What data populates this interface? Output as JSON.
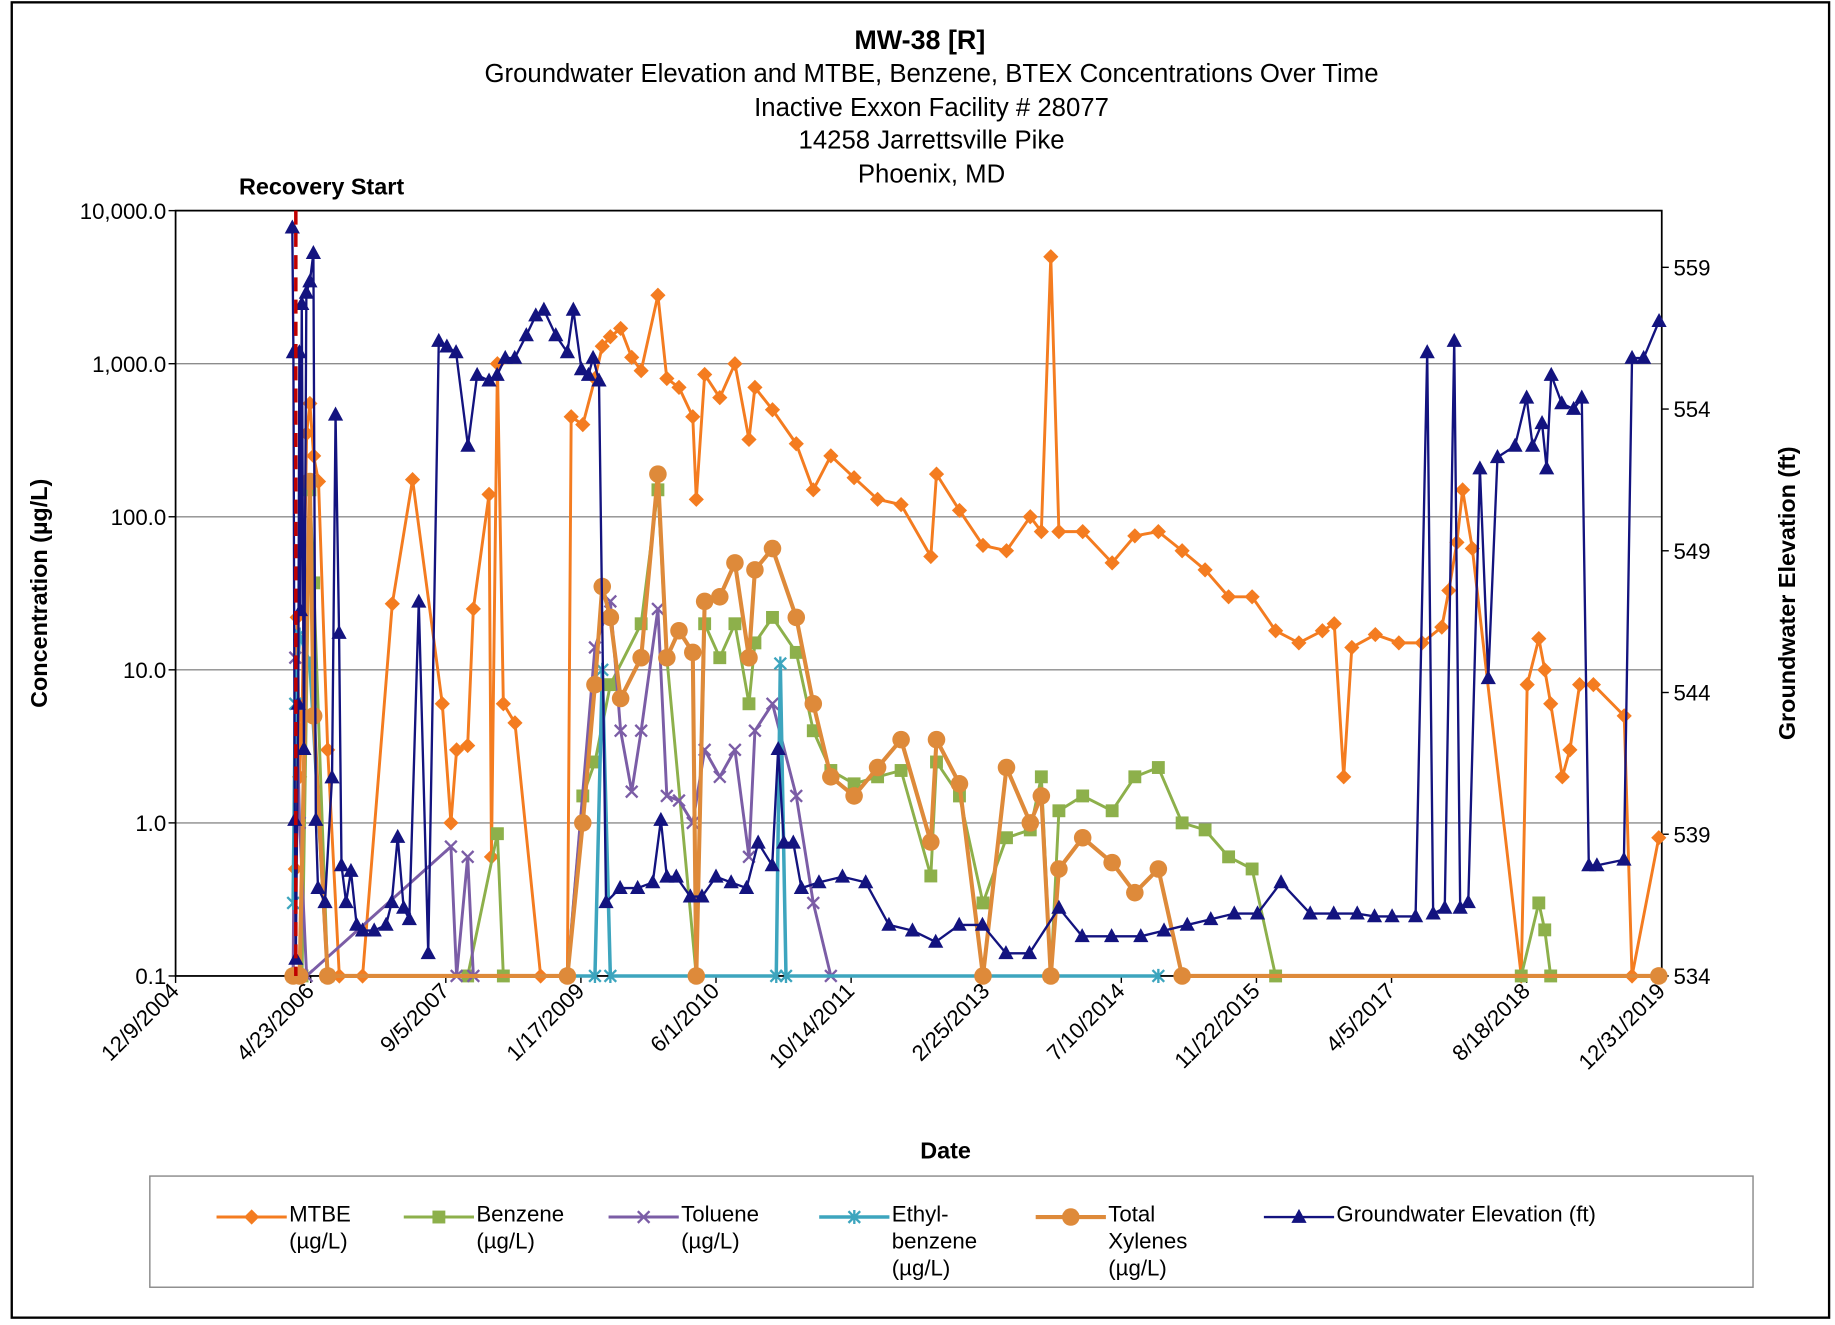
{
  "chart_data": {
    "type": "line",
    "title": "MW-38 [R]",
    "subtitle": [
      "Groundwater Elevation and MTBE, Benzene, BTEX Concentrations Over Time",
      "Inactive Exxon Facility # 28077",
      "14258 Jarrettsville Pike",
      "Phoenix, MD"
    ],
    "xlabel": "Date",
    "ylabel": "Concentration (µg/L)",
    "y2label": "Groundwater Elevation (ft)",
    "yscale": "log",
    "grid": true,
    "legend": "bottom",
    "xlim": [
      "2004-12-09",
      "2019-12-31"
    ],
    "xticks": [
      {
        "value": "2004-12-09",
        "label": "12/9/2004"
      },
      {
        "value": "2006-04-23",
        "label": "4/23/2006"
      },
      {
        "value": "2007-09-05",
        "label": "9/5/2007"
      },
      {
        "value": "2009-01-17",
        "label": "1/17/2009"
      },
      {
        "value": "2010-06-01",
        "label": "6/1/2010"
      },
      {
        "value": "2011-10-14",
        "label": "10/14/2011"
      },
      {
        "value": "2013-02-25",
        "label": "2/25/2013"
      },
      {
        "value": "2014-07-10",
        "label": "7/10/2014"
      },
      {
        "value": "2015-11-22",
        "label": "11/22/2015"
      },
      {
        "value": "2017-04-05",
        "label": "4/5/2017"
      },
      {
        "value": "2018-08-18",
        "label": "8/18/2018"
      },
      {
        "value": "2019-12-31",
        "label": "12/31/2019"
      }
    ],
    "ylim": [
      0.1,
      10000
    ],
    "yticks": [
      0.1,
      {
        "value": 1,
        "label": "1.0"
      },
      {
        "value": 10,
        "label": "10.0"
      },
      {
        "value": 100,
        "label": "100.0"
      },
      {
        "value": 1000,
        "label": "1,000.0"
      },
      {
        "value": 10000,
        "label": "10,000.0"
      }
    ],
    "y2lim": [
      534,
      561
    ],
    "y2ticks": [
      534,
      539,
      544,
      549,
      554,
      559
    ],
    "annotations": [
      {
        "text": "Recovery Start",
        "x": "2006-02-27",
        "color": "#c00000"
      }
    ],
    "series": [
      {
        "name": "MTBE (µg/L)",
        "color": "#f47c20",
        "marker": "diamond",
        "x": [
          "2006-02-17",
          "2006-02-25",
          "2006-03-04",
          "2006-03-13",
          "2006-03-22",
          "2006-04-08",
          "2006-04-20",
          "2006-05-04",
          "2006-05-22",
          "2006-06-25",
          "2006-08-07",
          "2006-11-01",
          "2007-02-19",
          "2007-05-05",
          "2007-08-23",
          "2007-09-24",
          "2007-10-15",
          "2007-11-25",
          "2007-12-16",
          "2008-02-12",
          "2008-02-21",
          "2008-03-14",
          "2008-04-05",
          "2008-05-18",
          "2008-08-21",
          "2008-11-28",
          "2008-12-12",
          "2009-01-24",
          "2009-03-10",
          "2009-04-06",
          "2009-05-06",
          "2009-06-13",
          "2009-07-24",
          "2009-08-28",
          "2009-10-29",
          "2009-12-01",
          "2010-01-15",
          "2010-03-07",
          "2010-03-20",
          "2010-04-20",
          "2010-06-15",
          "2010-08-10",
          "2010-10-01",
          "2010-10-23",
          "2010-12-27",
          "2011-03-25",
          "2011-05-27",
          "2011-07-31",
          "2011-10-25",
          "2012-01-20",
          "2012-04-16",
          "2012-08-04",
          "2012-08-25",
          "2012-11-18",
          "2013-02-13",
          "2013-05-11",
          "2013-08-07",
          "2013-09-17",
          "2013-10-22",
          "2013-11-21",
          "2014-02-17",
          "2014-06-06",
          "2014-08-29",
          "2014-11-24",
          "2015-02-20",
          "2015-05-16",
          "2015-08-11",
          "2015-11-06",
          "2016-02-01",
          "2016-04-27",
          "2016-07-23",
          "2016-09-05",
          "2016-10-10",
          "2016-11-09",
          "2017-02-04",
          "2017-05-02",
          "2017-07-27",
          "2017-10-08",
          "2017-11-03",
          "2017-12-03",
          "2017-12-24",
          "2018-01-29",
          "2018-07-29",
          "2018-08-20",
          "2018-10-02",
          "2018-10-24",
          "2018-11-15",
          "2018-12-28",
          "2019-01-25",
          "2019-03-02",
          "2019-04-22",
          "2019-08-14",
          "2019-09-12",
          "2019-12-20"
        ],
        "values": [
          0.1,
          0.5,
          22,
          2,
          5,
          350,
          550,
          250,
          170,
          3,
          0.1,
          0.1,
          27,
          175,
          6,
          1,
          3,
          3.2,
          25,
          140,
          0.6,
          1000,
          6,
          4.5,
          0.1,
          0.1,
          450,
          400,
          800,
          1300,
          1500,
          1700,
          1100,
          900,
          2800,
          800,
          700,
          450,
          130,
          850,
          600,
          1000,
          320,
          700,
          500,
          300,
          150,
          250,
          180,
          130,
          120,
          55,
          190,
          110,
          65,
          60,
          100,
          80,
          5000,
          80,
          80,
          50,
          75,
          80,
          60,
          45,
          30,
          30,
          18,
          15,
          18,
          20,
          2,
          14,
          17,
          15,
          15,
          19,
          33,
          68,
          150,
          62,
          0.1,
          8,
          16,
          10,
          6,
          2,
          3,
          8,
          8,
          5,
          0.1,
          0.8
        ]
      },
      {
        "name": "Benzene (µg/L)",
        "color": "#8db04b",
        "marker": "square",
        "x": [
          "2006-02-17",
          "2006-03-22",
          "2006-04-20",
          "2006-05-04",
          "2006-06-25",
          "2007-11-25",
          "2008-03-14",
          "2008-04-05",
          "2008-11-28",
          "2009-01-24",
          "2009-03-10",
          "2009-05-06",
          "2009-08-28",
          "2009-10-29",
          "2009-12-01",
          "2010-03-20",
          "2010-04-20",
          "2010-06-15",
          "2010-08-10",
          "2010-10-01",
          "2010-10-23",
          "2010-12-27",
          "2011-03-25",
          "2011-05-27",
          "2011-07-31",
          "2011-10-25",
          "2012-01-20",
          "2012-04-16",
          "2012-08-04",
          "2012-08-25",
          "2012-11-18",
          "2013-02-13",
          "2013-05-11",
          "2013-08-07",
          "2013-09-17",
          "2013-10-22",
          "2013-11-21",
          "2014-02-17",
          "2014-06-06",
          "2014-08-29",
          "2014-11-24",
          "2015-02-20",
          "2015-05-16",
          "2015-08-11",
          "2015-11-06",
          "2016-02-01",
          "2018-07-29",
          "2018-10-02",
          "2018-10-24",
          "2018-11-15",
          "2019-12-20"
        ],
        "values": [
          0.1,
          0.1,
          150,
          37,
          0.1,
          0.1,
          0.85,
          0.1,
          0.1,
          1.5,
          2.5,
          8,
          20,
          150,
          12,
          0.1,
          20,
          12,
          20,
          6,
          15,
          22,
          13,
          4,
          2.2,
          1.8,
          2,
          2.2,
          0.45,
          2.5,
          1.5,
          0.3,
          0.8,
          0.9,
          2,
          0.1,
          1.2,
          1.5,
          1.2,
          2,
          2.3,
          1,
          0.9,
          0.6,
          0.5,
          0.1,
          0.1,
          0.3,
          0.2,
          0.1,
          0.1
        ]
      },
      {
        "name": "Toluene (µg/L)",
        "color": "#7b5da6",
        "marker": "x",
        "x": [
          "2006-02-17",
          "2006-02-25",
          "2006-03-13",
          "2006-04-08",
          "2007-09-24",
          "2007-10-15",
          "2007-11-25",
          "2007-12-16",
          "2008-11-28",
          "2009-03-10",
          "2009-05-06",
          "2009-06-13",
          "2009-07-24",
          "2009-08-28",
          "2009-10-29",
          "2009-12-01",
          "2010-01-15",
          "2010-03-07",
          "2010-04-20",
          "2010-06-15",
          "2010-08-10",
          "2010-10-01",
          "2010-10-23",
          "2010-12-27",
          "2011-03-25",
          "2011-05-27",
          "2011-07-31"
        ],
        "values": [
          0.1,
          12,
          1,
          0.1,
          0.7,
          0.1,
          0.6,
          0.1,
          0.1,
          14,
          28,
          4,
          1.6,
          4,
          25,
          1.5,
          1.4,
          1,
          3,
          2,
          3,
          0.6,
          4,
          6,
          1.5,
          0.3,
          0.1
        ]
      },
      {
        "name": "Ethyl-benzene (µg/L)",
        "color": "#3da5be",
        "marker": "asterisk",
        "x": [
          "2006-02-17",
          "2006-02-25",
          "2006-03-13",
          "2006-04-20",
          "2006-06-25",
          "2009-03-10",
          "2009-04-06",
          "2009-05-06",
          "2011-01-10",
          "2011-01-25",
          "2011-02-15",
          "2014-11-24"
        ],
        "values": [
          0.3,
          6,
          17,
          11,
          0.1,
          0.1,
          10,
          0.1,
          0.1,
          11,
          0.1,
          0.1
        ]
      },
      {
        "name": "Total Xylenes (µg/L)",
        "color": "#de8a3a",
        "marker": "circle",
        "x": [
          "2006-02-17",
          "2006-03-13",
          "2006-04-20",
          "2006-05-04",
          "2006-06-25",
          "2008-11-28",
          "2009-01-24",
          "2009-03-10",
          "2009-04-06",
          "2009-05-06",
          "2009-06-13",
          "2009-08-28",
          "2009-10-29",
          "2009-12-01",
          "2010-01-15",
          "2010-03-07",
          "2010-03-20",
          "2010-04-20",
          "2010-06-15",
          "2010-08-10",
          "2010-10-01",
          "2010-10-23",
          "2010-12-27",
          "2011-03-25",
          "2011-05-27",
          "2011-07-31",
          "2011-10-25",
          "2012-01-20",
          "2012-04-16",
          "2012-08-04",
          "2012-08-25",
          "2012-11-18",
          "2013-02-13",
          "2013-05-11",
          "2013-08-07",
          "2013-09-17",
          "2013-10-22",
          "2013-11-21",
          "2014-02-17",
          "2014-06-06",
          "2014-08-29",
          "2014-11-24",
          "2015-02-20",
          "2019-12-20"
        ],
        "values": [
          0.1,
          0.1,
          170,
          5,
          0.1,
          0.1,
          1,
          8,
          35,
          22,
          6.5,
          12,
          190,
          12,
          18,
          13,
          0.1,
          28,
          30,
          50,
          12,
          45,
          62,
          22,
          6,
          2,
          1.5,
          2.3,
          3.5,
          0.75,
          3.5,
          1.8,
          0.1,
          2.3,
          1,
          1.5,
          0.1,
          0.5,
          0.8,
          0.55,
          0.35,
          0.5,
          0.1,
          0.1
        ]
      },
      {
        "name": "Groundwater Elevation (ft)",
        "color": "#13137f",
        "marker": "triangle",
        "axis": "y2",
        "x": [
          "2006-02-14",
          "2006-02-18",
          "2006-02-23",
          "2006-02-27",
          "2006-03-08",
          "2006-03-12",
          "2006-03-16",
          "2006-03-21",
          "2006-03-29",
          "2006-04-07",
          "2006-04-20",
          "2006-05-03",
          "2006-05-12",
          "2006-05-20",
          "2006-06-15",
          "2006-07-11",
          "2006-07-24",
          "2006-08-06",
          "2006-08-15",
          "2006-09-01",
          "2006-09-19",
          "2006-10-10",
          "2006-11-01",
          "2006-12-14",
          "2007-01-27",
          "2007-02-17",
          "2007-03-11",
          "2007-04-02",
          "2007-04-23",
          "2007-05-28",
          "2007-07-02",
          "2007-08-10",
          "2007-09-09",
          "2007-10-13",
          "2007-11-26",
          "2007-12-30",
          "2008-02-12",
          "2008-03-13",
          "2008-04-12",
          "2008-05-17",
          "2008-06-29",
          "2008-08-03",
          "2008-09-02",
          "2008-10-16",
          "2008-11-28",
          "2008-12-20",
          "2009-01-19",
          "2009-02-14",
          "2009-03-03",
          "2009-03-25",
          "2009-04-20",
          "2009-06-11",
          "2009-08-15",
          "2009-10-10",
          "2009-11-09",
          "2009-12-01",
          "2010-01-05",
          "2010-02-26",
          "2010-04-10",
          "2010-06-01",
          "2010-07-27",
          "2010-09-22",
          "2010-11-04",
          "2010-12-26",
          "2011-01-17",
          "2011-02-07",
          "2011-03-14",
          "2011-04-13",
          "2011-06-17",
          "2011-09-12",
          "2011-12-07",
          "2012-03-02",
          "2012-05-28",
          "2012-08-22",
          "2012-11-17",
          "2013-02-11",
          "2013-05-09",
          "2013-08-04",
          "2013-11-21",
          "2014-02-15",
          "2014-06-04",
          "2014-09-20",
          "2014-12-15",
          "2015-03-11",
          "2015-06-06",
          "2015-09-01",
          "2015-11-26",
          "2016-02-21",
          "2016-06-08",
          "2016-09-03",
          "2016-11-29",
          "2017-02-01",
          "2017-04-07",
          "2017-07-03",
          "2017-08-15",
          "2017-09-06",
          "2017-10-19",
          "2017-11-23",
          "2017-12-15",
          "2018-01-14",
          "2018-02-26",
          "2018-03-29",
          "2018-05-02",
          "2018-07-06",
          "2018-08-18",
          "2018-09-09",
          "2018-10-14",
          "2018-10-31",
          "2018-11-17",
          "2018-12-26",
          "2019-02-08",
          "2019-03-10",
          "2019-04-05",
          "2019-05-05",
          "2019-08-13",
          "2019-09-12",
          "2019-10-25",
          "2019-12-21"
        ],
        "values": [
          560.4,
          556,
          539.5,
          534.6,
          543.6,
          556,
          546.9,
          557.7,
          542,
          558.1,
          558.5,
          559.5,
          539.5,
          537.1,
          536.6,
          541,
          553.8,
          546.1,
          537.9,
          536.6,
          537.7,
          535.8,
          535.6,
          535.6,
          535.8,
          536.6,
          538.9,
          536.4,
          536,
          547.2,
          534.8,
          556.4,
          556.2,
          556,
          552.7,
          555.2,
          555,
          555.2,
          555.8,
          555.8,
          556.6,
          557.3,
          557.5,
          556.6,
          556,
          557.5,
          555.4,
          555.2,
          555.8,
          555,
          536.6,
          537.1,
          537.1,
          537.3,
          539.5,
          537.5,
          537.5,
          536.8,
          536.8,
          537.5,
          537.3,
          537.1,
          538.7,
          537.9,
          542,
          538.7,
          538.7,
          537.1,
          537.3,
          537.5,
          537.3,
          535.8,
          535.6,
          535.2,
          535.8,
          535.8,
          534.8,
          534.8,
          536.4,
          535.4,
          535.4,
          535.4,
          535.6,
          535.8,
          536,
          536.2,
          536.2,
          537.3,
          536.2,
          536.2,
          536.2,
          536.1,
          536.1,
          536.1,
          556,
          536.2,
          536.4,
          556.4,
          536.4,
          536.6,
          551.9,
          544.5,
          552.3,
          552.7,
          554.4,
          552.7,
          553.5,
          551.9,
          555.2,
          554.2,
          554,
          554.4,
          537.9,
          537.9,
          538.1,
          555.8,
          555.8,
          557.1
        ]
      }
    ]
  }
}
